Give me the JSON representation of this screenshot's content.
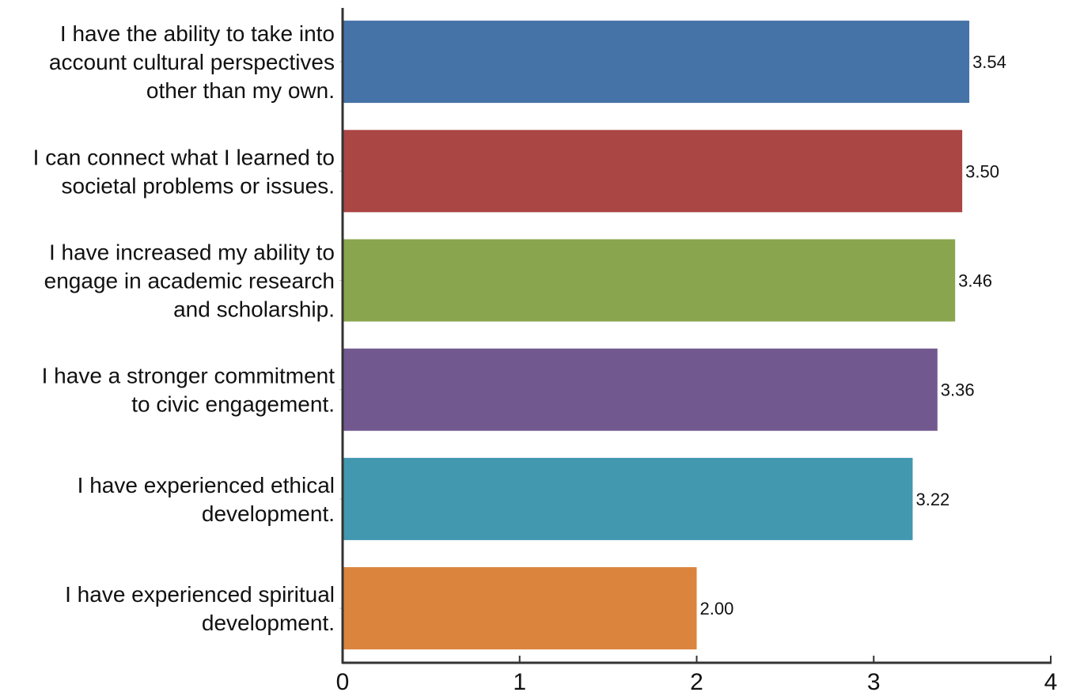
{
  "chart_data": {
    "type": "bar",
    "orientation": "horizontal",
    "categories": [
      [
        "I have the ability to take into",
        "account cultural perspectives",
        "other than my own."
      ],
      [
        "I can connect what I learned to",
        "societal problems or issues."
      ],
      [
        "I have increased my ability to",
        "engage in academic research",
        "and scholarship."
      ],
      [
        "I have a stronger commitment",
        "to civic engagement."
      ],
      [
        "I have experienced ethical",
        "development."
      ],
      [
        "I have experienced spiritual",
        "development."
      ]
    ],
    "values": [
      3.54,
      3.5,
      3.46,
      3.36,
      3.22,
      2.0
    ],
    "value_labels": [
      "3.54",
      "3.50",
      "3.46",
      "3.36",
      "3.22",
      "2.00"
    ],
    "colors": [
      "#4573a7",
      "#aa4644",
      "#89a54e",
      "#71588f",
      "#4298af",
      "#db843d"
    ],
    "title": "",
    "xlabel": "",
    "ylabel": "",
    "xlim": [
      0,
      4
    ],
    "xticks": [
      0,
      1,
      2,
      3,
      4
    ],
    "xtick_labels": [
      "0",
      "1",
      "2",
      "3",
      "4"
    ],
    "grid": false,
    "legend": "none"
  }
}
